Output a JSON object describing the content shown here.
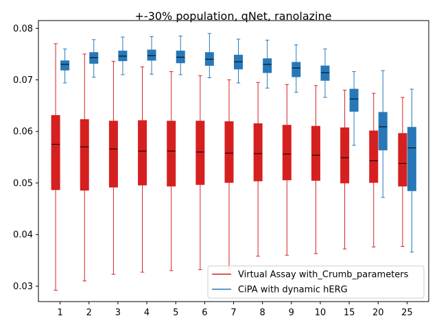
{
  "chart_data": {
    "type": "box",
    "title": "+-30% population, qNet, ranolazine",
    "xlabel": "",
    "ylabel": "",
    "categories": [
      "1",
      "2",
      "3",
      "4",
      "5",
      "6",
      "7",
      "8",
      "9",
      "10",
      "15",
      "20",
      "25"
    ],
    "ylim": [
      0.027,
      0.0815
    ],
    "yticks": [
      0.03,
      0.04,
      0.05,
      0.06,
      0.07,
      0.08
    ],
    "ytick_labels": [
      "0.03",
      "0.04",
      "0.05",
      "0.06",
      "0.07",
      "0.08"
    ],
    "grid": false,
    "legend_position": "lower-right",
    "series": [
      {
        "name": "Virtual Assay with_Crumb_parameters",
        "color": "#d62020",
        "median_color": "#000000",
        "boxes": [
          {
            "whislo": 0.0292,
            "q1": 0.0487,
            "med": 0.0575,
            "q3": 0.0631,
            "whishi": 0.077
          },
          {
            "whislo": 0.031,
            "q1": 0.0486,
            "med": 0.057,
            "q3": 0.0623,
            "whishi": 0.075
          },
          {
            "whislo": 0.0323,
            "q1": 0.0492,
            "med": 0.0566,
            "q3": 0.062,
            "whishi": 0.0736
          },
          {
            "whislo": 0.0327,
            "q1": 0.0496,
            "med": 0.0562,
            "q3": 0.0621,
            "whishi": 0.0725
          },
          {
            "whislo": 0.033,
            "q1": 0.0494,
            "med": 0.0562,
            "q3": 0.062,
            "whishi": 0.0716
          },
          {
            "whislo": 0.0332,
            "q1": 0.0497,
            "med": 0.056,
            "q3": 0.062,
            "whishi": 0.0708
          },
          {
            "whislo": 0.0334,
            "q1": 0.0501,
            "med": 0.0558,
            "q3": 0.0619,
            "whishi": 0.07
          },
          {
            "whislo": 0.0358,
            "q1": 0.0504,
            "med": 0.0557,
            "q3": 0.0615,
            "whishi": 0.0695
          },
          {
            "whislo": 0.036,
            "q1": 0.0506,
            "med": 0.0556,
            "q3": 0.0612,
            "whishi": 0.0691
          },
          {
            "whislo": 0.0363,
            "q1": 0.0505,
            "med": 0.0554,
            "q3": 0.061,
            "whishi": 0.0689
          },
          {
            "whislo": 0.0372,
            "q1": 0.05,
            "med": 0.0549,
            "q3": 0.0607,
            "whishi": 0.068
          },
          {
            "whislo": 0.0376,
            "q1": 0.0501,
            "med": 0.0543,
            "q3": 0.0601,
            "whishi": 0.0674
          },
          {
            "whislo": 0.0377,
            "q1": 0.0494,
            "med": 0.0538,
            "q3": 0.0596,
            "whishi": 0.0666
          }
        ]
      },
      {
        "name": "CiPA with dynamic hERG",
        "color": "#2878b8",
        "median_color": "#000000",
        "boxes": [
          {
            "whislo": 0.0694,
            "q1": 0.0719,
            "med": 0.073,
            "q3": 0.0737,
            "whishi": 0.076
          },
          {
            "whislo": 0.0705,
            "q1": 0.0732,
            "med": 0.0743,
            "q3": 0.0753,
            "whishi": 0.0778
          },
          {
            "whislo": 0.071,
            "q1": 0.0737,
            "med": 0.0746,
            "q3": 0.0756,
            "whishi": 0.0783
          },
          {
            "whislo": 0.0711,
            "q1": 0.0738,
            "med": 0.0747,
            "q3": 0.0758,
            "whishi": 0.0784
          },
          {
            "whislo": 0.071,
            "q1": 0.0733,
            "med": 0.0744,
            "q3": 0.0756,
            "whishi": 0.0785
          },
          {
            "whislo": 0.0704,
            "q1": 0.0728,
            "med": 0.074,
            "q3": 0.0753,
            "whishi": 0.079
          },
          {
            "whislo": 0.0694,
            "q1": 0.0721,
            "med": 0.0735,
            "q3": 0.0748,
            "whishi": 0.0779
          },
          {
            "whislo": 0.0684,
            "q1": 0.0714,
            "med": 0.073,
            "q3": 0.0741,
            "whishi": 0.0777
          },
          {
            "whislo": 0.0676,
            "q1": 0.0706,
            "med": 0.0723,
            "q3": 0.0734,
            "whishi": 0.0768
          },
          {
            "whislo": 0.0666,
            "q1": 0.0699,
            "med": 0.0714,
            "q3": 0.0727,
            "whishi": 0.076
          },
          {
            "whislo": 0.0573,
            "q1": 0.0639,
            "med": 0.0663,
            "q3": 0.0682,
            "whishi": 0.0716
          },
          {
            "whislo": 0.0472,
            "q1": 0.0564,
            "med": 0.0609,
            "q3": 0.0637,
            "whishi": 0.0718
          },
          {
            "whislo": 0.0366,
            "q1": 0.0485,
            "med": 0.0568,
            "q3": 0.0608,
            "whishi": 0.0682
          }
        ]
      }
    ]
  }
}
